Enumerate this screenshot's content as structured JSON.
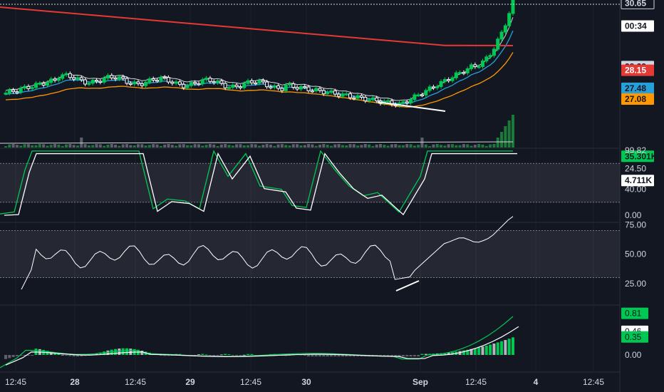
{
  "price_pane": {
    "labels": [
      {
        "text": "30.65",
        "price": 30.65,
        "bg": "#131722",
        "fg": "#d1d4dc",
        "border": "#d1d4dc"
      },
      {
        "text": "00:34",
        "price": 29.8,
        "bg": "#ffffff",
        "fg": "#131722",
        "border": ""
      },
      {
        "text": "28.29",
        "price": 28.29,
        "bg": "#d1d4dc",
        "fg": "#131722",
        "border": ""
      },
      {
        "text": "28.15",
        "price": 28.15,
        "bg": "#e53935",
        "fg": "#ffffff",
        "border": ""
      },
      {
        "text": "27.48",
        "price": 27.48,
        "bg": "#26a0da",
        "fg": "#131722",
        "border": ""
      },
      {
        "text": "27.08",
        "price": 27.08,
        "bg": "#ff9800",
        "fg": "#131722",
        "border": ""
      },
      {
        "text": "35.301K",
        "price": 24.95,
        "bg": "#00c853",
        "fg": "#131722",
        "border": ""
      },
      {
        "text": "24.50",
        "price": 24.5,
        "bg": "",
        "fg": "#d1d4dc",
        "border": ""
      },
      {
        "text": "4.711K",
        "price": 24.05,
        "bg": "#ffffff",
        "fg": "#131722",
        "border": ""
      }
    ],
    "colors": {
      "ema200": "#e53935",
      "ema50": "#ff9800",
      "ema20": "#26a0da",
      "sma10": "#d1d4dc",
      "up": "#00c853",
      "down": "#ffffff"
    }
  },
  "stoch_pane": {
    "ticks": [
      "99.82",
      "40.00",
      "0.00"
    ],
    "tick_values": [
      99.82,
      40,
      0
    ],
    "band": [
      20,
      80
    ],
    "colors": {
      "k": "#00c853",
      "d": "#ffffff"
    }
  },
  "rsi_pane": {
    "ticks": [
      "75.00",
      "50.00",
      "25.00"
    ],
    "tick_values": [
      75,
      50,
      25
    ],
    "band": [
      30,
      70
    ],
    "color": "#ffffff"
  },
  "macd_pane": {
    "labels": [
      {
        "text": "0.81",
        "value": 0.81,
        "bg": "#00c853",
        "fg": "#131722"
      },
      {
        "text": "0.46",
        "value": 0.46,
        "bg": "#ffffff",
        "fg": "#131722"
      },
      {
        "text": "0.35",
        "value": 0.35,
        "bg": "#00c853",
        "fg": "#131722"
      },
      {
        "text": "0.00",
        "value": 0.0,
        "bg": "",
        "fg": "#d1d4dc"
      }
    ],
    "colors": {
      "macd": "#00c853",
      "signal": "#ffffff"
    }
  },
  "time_axis": {
    "labels": [
      "12:45",
      "28",
      "12:45",
      "29",
      "12:45",
      "30",
      "Sep",
      "12:45",
      "4",
      "12:45"
    ],
    "bold": [
      false,
      true,
      false,
      true,
      false,
      true,
      true,
      false,
      true,
      false
    ]
  }
}
